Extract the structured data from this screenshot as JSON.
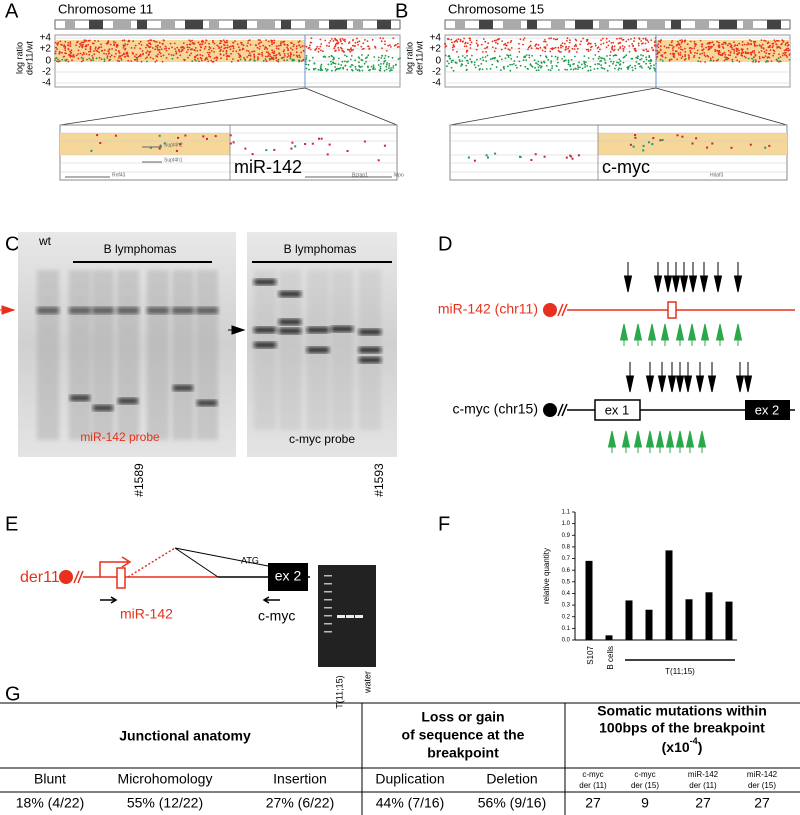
{
  "panels": {
    "a": {
      "label": "A",
      "title": "Chromosome 11",
      "ylabel": [
        "log ratio",
        "der11/wt"
      ],
      "yticks": [
        "+4",
        "+2",
        "0",
        "-2",
        "-4"
      ],
      "zoom_label": "miR-142",
      "genes": [
        "Supt4h2",
        "Supt4h1",
        "Rnf43",
        "Bzrap1",
        "Mpo"
      ]
    },
    "b": {
      "label": "B",
      "title": "Chromosome 15",
      "ylabel": [
        "log ratio",
        "der11/wt"
      ],
      "yticks": [
        "+4",
        "+2",
        "0",
        "-2",
        "-4"
      ],
      "zoom_label": "c-myc",
      "genes": [
        "Hdaf3"
      ]
    },
    "c": {
      "label": "C",
      "wt": "wt",
      "group1": "B lymphomas",
      "group2": "B lymphomas",
      "probe1": "miR-142 probe",
      "probe2": "c-myc probe",
      "sample1": "#1589",
      "sample2": "#1593"
    },
    "d": {
      "label": "D",
      "gene1": "miR-142 (chr11)",
      "gene2": "c-myc (chr15)",
      "exon1": "ex 1",
      "exon2": "ex 2"
    },
    "e": {
      "label": "E",
      "der": "der11",
      "mir": "miR-142",
      "myc": "c-myc",
      "atg": "ATG",
      "exon": "ex 2",
      "lane1": "T(11;15)",
      "lane2": "water"
    },
    "f": {
      "label": "F"
    }
  },
  "chart_data": {
    "type": "bar",
    "ylabel": "relative quantity",
    "categories": [
      "S107",
      "B cells",
      null,
      null,
      null,
      null,
      null,
      null
    ],
    "values": [
      0.68,
      0.04,
      0.34,
      0.26,
      0.77,
      0.35,
      0.41,
      0.33
    ],
    "group_label": "T(11;15)",
    "color": "#000000",
    "ylim": [
      0,
      1.1
    ],
    "yticks": [
      {
        "value": 0,
        "label": "0.0"
      },
      {
        "value": 0.1,
        "label": "0.1"
      },
      {
        "value": 0.2,
        "label": "0.2"
      },
      {
        "value": 0.3,
        "label": "0.3"
      },
      {
        "value": 0.4,
        "label": "0.4"
      },
      {
        "value": 0.5,
        "label": "0.5"
      },
      {
        "value": 0.6,
        "label": "0.6"
      },
      {
        "value": 0.7,
        "label": "0.7"
      },
      {
        "value": 0.8,
        "label": "0.8"
      },
      {
        "value": 0.9,
        "label": "0.9"
      },
      {
        "value": 1,
        "label": "1.0"
      },
      {
        "value": 1.1,
        "label": "1.1"
      }
    ]
  },
  "table": {
    "label": "G",
    "groups": [
      {
        "lines": [
          "Junctional anatomy"
        ]
      },
      {
        "lines": [
          "Loss or gain",
          "of sequence at the",
          "breakpoint"
        ]
      },
      {
        "lines": [
          "Somatic mutations within",
          "100bps of the breakpoint"
        ],
        "unit": {
          "base": "(x10",
          "sup": "-4",
          "end": ")"
        }
      }
    ],
    "columns": [
      [
        "Blunt"
      ],
      [
        "Microhomology"
      ],
      [
        "Insertion"
      ],
      [
        "Duplication"
      ],
      [
        "Deletion"
      ],
      [
        "c-myc",
        "der (11)"
      ],
      [
        "c-myc",
        "der (15)"
      ],
      [
        "miR-142",
        "der (11)"
      ],
      [
        "miR-142",
        "der (15)"
      ]
    ],
    "row": [
      "18% (4/22)",
      "55% (12/22)",
      "27% (6/22)",
      "44% (7/16)",
      "56% (9/16)",
      27,
      9,
      27,
      27
    ]
  }
}
